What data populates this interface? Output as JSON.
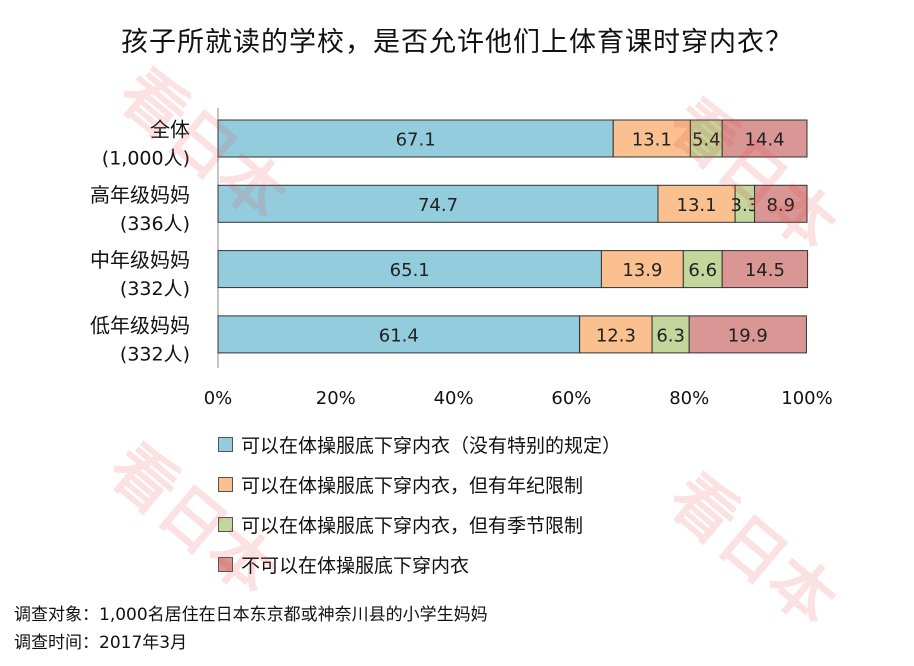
{
  "chart_data": {
    "type": "bar",
    "orientation": "horizontal",
    "stacked": true,
    "title": "孩子所就读的学校，是否允许他们上体育课时穿内衣？",
    "categories": [
      "全体",
      "高年级妈妈",
      "中年级妈妈",
      "低年级妈妈"
    ],
    "category_counts": [
      "(1,000人)",
      "(336人)",
      "(332人)",
      "(332人)"
    ],
    "series": [
      {
        "name": "可以在体操服底下穿内衣（没有特别的规定）",
        "color": "#93cddd",
        "values": [
          67.1,
          74.7,
          65.1,
          61.4
        ]
      },
      {
        "name": "可以在体操服底下穿内衣，但有年纪限制",
        "color": "#fac090",
        "values": [
          13.1,
          13.1,
          13.9,
          12.3
        ]
      },
      {
        "name": "可以在体操服底下穿内衣，但有季节限制",
        "color": "#c3d69b",
        "values": [
          5.4,
          3.3,
          6.6,
          6.3
        ]
      },
      {
        "name": "不可以在体操服底下穿内衣",
        "color": "#d99694",
        "values": [
          14.4,
          8.9,
          14.5,
          19.9
        ]
      }
    ],
    "data_labels": [
      [
        "67.1",
        "74.7",
        "65.1",
        "61.4"
      ],
      [
        "13.1",
        "13.1",
        "13.9",
        "12.3"
      ],
      [
        "5.4",
        "3.3",
        "6.6",
        "6.3"
      ],
      [
        "14.4",
        "8.9",
        "14.5",
        "19.9"
      ]
    ],
    "xlim": [
      0,
      100
    ],
    "x_ticks": [
      "0%",
      "20%",
      "40%",
      "60%",
      "80%",
      "100%"
    ],
    "xlabel": "",
    "ylabel": "",
    "legend_position": "bottom",
    "grid": false
  },
  "watermark": "看日本",
  "footer": {
    "subject": "调查对象：1,000名居住在日本东京都或神奈川县的小学生妈妈",
    "period": "调查时间：2017年3月"
  }
}
